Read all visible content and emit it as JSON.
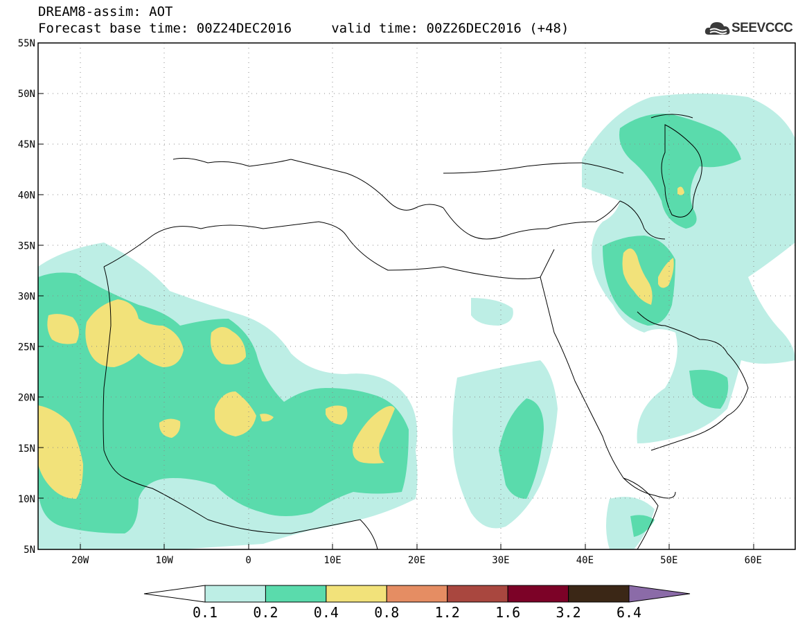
{
  "header": {
    "title_line1": "DREAM8-assim: AOT",
    "title_line2": "Forecast base time: 00Z24DEC2016     valid time: 00Z26DEC2016 (+48)"
  },
  "logo": {
    "text": "SEEVCCC",
    "icon": "cloud-icon"
  },
  "map": {
    "lon_range": [
      -25,
      65
    ],
    "lat_range": [
      5,
      55
    ],
    "lat_ticks": [
      {
        "value": 55,
        "label": "55N"
      },
      {
        "value": 50,
        "label": "50N"
      },
      {
        "value": 45,
        "label": "45N"
      },
      {
        "value": 40,
        "label": "40N"
      },
      {
        "value": 35,
        "label": "35N"
      },
      {
        "value": 30,
        "label": "30N"
      },
      {
        "value": 25,
        "label": "25N"
      },
      {
        "value": 20,
        "label": "20N"
      },
      {
        "value": 15,
        "label": "15N"
      },
      {
        "value": 10,
        "label": "10N"
      },
      {
        "value": 5,
        "label": "5N"
      }
    ],
    "lon_ticks": [
      {
        "value": -20,
        "label": "20W"
      },
      {
        "value": -10,
        "label": "10W"
      },
      {
        "value": 0,
        "label": "0"
      },
      {
        "value": 10,
        "label": "10E"
      },
      {
        "value": 20,
        "label": "20E"
      },
      {
        "value": 30,
        "label": "30E"
      },
      {
        "value": 40,
        "label": "40E"
      },
      {
        "value": 50,
        "label": "50E"
      },
      {
        "value": 60,
        "label": "60E"
      }
    ]
  },
  "colorbar": {
    "low_extend_color": "#ffffff",
    "high_extend_color": "#8b6ba8",
    "bins": [
      {
        "color": "#bdeee5",
        "label": "0.1"
      },
      {
        "color": "#5adbac",
        "label": "0.2"
      },
      {
        "color": "#f2e27a",
        "label": "0.4"
      },
      {
        "color": "#e58d63",
        "label": "0.8"
      },
      {
        "color": "#a9473f",
        "label": "1.2"
      },
      {
        "color": "#7c0227",
        "label": "1.6"
      },
      {
        "color": "#3b2716",
        "label": "3.2"
      }
    ],
    "last_label": "6.4"
  }
}
